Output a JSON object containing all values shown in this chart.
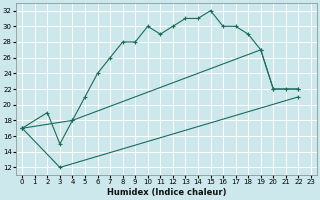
{
  "xlabel": "Humidex (Indice chaleur)",
  "ylabel": "",
  "bg_color": "#cce8ec",
  "grid_color": "#b0d4d8",
  "line_color": "#1a6b5a",
  "xlim": [
    -0.5,
    23.5
  ],
  "ylim": [
    11,
    33
  ],
  "xticks": [
    0,
    1,
    2,
    3,
    4,
    5,
    6,
    7,
    8,
    9,
    10,
    11,
    12,
    13,
    14,
    15,
    16,
    17,
    18,
    19,
    20,
    21,
    22,
    23
  ],
  "yticks": [
    12,
    14,
    16,
    18,
    20,
    22,
    24,
    26,
    28,
    30,
    32
  ],
  "line1_x": [
    0,
    2,
    3,
    4,
    5,
    6,
    7,
    8,
    9,
    10,
    11,
    12,
    13,
    14,
    15,
    16,
    17,
    18,
    19,
    20,
    21,
    22
  ],
  "line1_y": [
    17,
    19,
    15,
    18,
    21,
    24,
    26,
    28,
    28,
    30,
    29,
    30,
    31,
    31,
    32,
    30,
    30,
    29,
    27,
    22,
    22,
    22
  ],
  "line2_x": [
    0,
    4,
    19,
    20,
    22
  ],
  "line2_y": [
    17,
    18,
    27,
    22,
    22
  ],
  "line3_x": [
    0,
    3,
    22
  ],
  "line3_y": [
    17,
    12,
    21
  ]
}
